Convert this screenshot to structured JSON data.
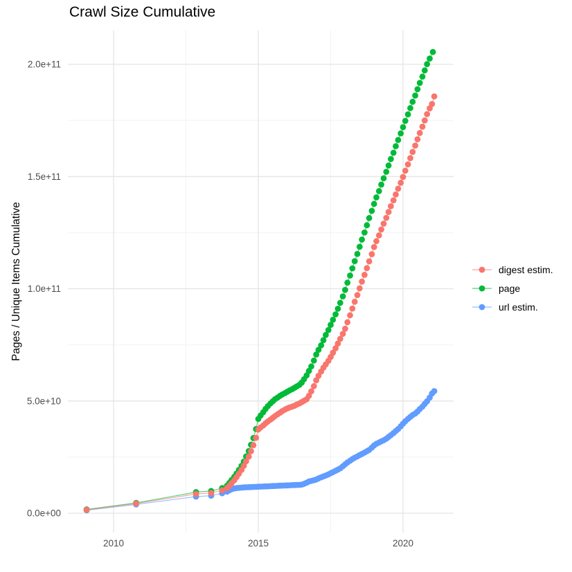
{
  "title": "Crawl Size Cumulative",
  "chart_data": {
    "type": "line",
    "title": "Crawl Size Cumulative",
    "xlabel": "",
    "ylabel": "Pages / Unique Items Cumulative",
    "x_unit": "year",
    "y_unit": "billions (1e9) of pages / unique items",
    "xlim": [
      2008.45,
      2021.75
    ],
    "ylim": [
      -10000000000,
      216000000000
    ],
    "grid": true,
    "legend_position": "right",
    "x_major_ticks": [
      2010,
      2015,
      2020
    ],
    "x_tick_labels": [
      "2010",
      "2015",
      "2020"
    ],
    "x_minor_ticks": [
      2012.5,
      2017.5
    ],
    "y_major_ticks": [
      0,
      50000000000,
      100000000000,
      150000000000,
      200000000000
    ],
    "y_tick_labels": [
      "0.0e+00",
      "5.0e+10",
      "1.0e+11",
      "1.5e+11",
      "2.0e+11"
    ],
    "y_minor_ticks": [
      25000000000,
      75000000000,
      125000000000,
      175000000000
    ],
    "series": [
      {
        "name": "digest estim.",
        "color": "#F8766D",
        "points": [
          [
            2009.07,
            1.5
          ],
          [
            2010.78,
            4.3
          ],
          [
            2012.85,
            8.6
          ],
          [
            2013.37,
            9.0
          ],
          [
            2013.75,
            10.2
          ],
          [
            2013.92,
            11.2
          ],
          [
            2014.0,
            12.2
          ],
          [
            2014.08,
            13.4
          ],
          [
            2014.17,
            14.7
          ],
          [
            2014.25,
            16.1
          ],
          [
            2014.33,
            17.6
          ],
          [
            2014.42,
            19.3
          ],
          [
            2014.5,
            21.1
          ],
          [
            2014.58,
            23.1
          ],
          [
            2014.67,
            25.2
          ],
          [
            2014.75,
            27.6
          ],
          [
            2014.83,
            30.3
          ],
          [
            2014.92,
            33.6
          ],
          [
            2015.0,
            37.3
          ],
          [
            2015.08,
            38.2
          ],
          [
            2015.17,
            39.1
          ],
          [
            2015.25,
            40.0
          ],
          [
            2015.33,
            40.9
          ],
          [
            2015.42,
            41.7
          ],
          [
            2015.5,
            42.5
          ],
          [
            2015.58,
            43.3
          ],
          [
            2015.67,
            44.1
          ],
          [
            2015.75,
            44.8
          ],
          [
            2015.83,
            45.5
          ],
          [
            2015.92,
            46.2
          ],
          [
            2016.0,
            46.7
          ],
          [
            2016.08,
            47.1
          ],
          [
            2016.17,
            47.5
          ],
          [
            2016.25,
            47.9
          ],
          [
            2016.33,
            48.4
          ],
          [
            2016.42,
            48.9
          ],
          [
            2016.5,
            49.5
          ],
          [
            2016.58,
            50.1
          ],
          [
            2016.67,
            50.8
          ],
          [
            2016.75,
            52.3
          ],
          [
            2016.83,
            54.3
          ],
          [
            2016.92,
            56.6
          ],
          [
            2017.0,
            59.2
          ],
          [
            2017.08,
            61.2
          ],
          [
            2017.17,
            63.1
          ],
          [
            2017.25,
            64.8
          ],
          [
            2017.33,
            66.3
          ],
          [
            2017.42,
            67.9
          ],
          [
            2017.5,
            69.6
          ],
          [
            2017.58,
            71.5
          ],
          [
            2017.67,
            73.5
          ],
          [
            2017.75,
            75.6
          ],
          [
            2017.83,
            77.7
          ],
          [
            2017.92,
            79.9
          ],
          [
            2018.0,
            82.2
          ],
          [
            2018.08,
            85.1
          ],
          [
            2018.17,
            88.2
          ],
          [
            2018.25,
            91.2
          ],
          [
            2018.33,
            94.2
          ],
          [
            2018.42,
            97.2
          ],
          [
            2018.5,
            100.2
          ],
          [
            2018.58,
            103.2
          ],
          [
            2018.67,
            106.2
          ],
          [
            2018.75,
            109.2
          ],
          [
            2018.83,
            112.2
          ],
          [
            2018.92,
            115.4
          ],
          [
            2019.0,
            118.6
          ],
          [
            2019.08,
            121.2
          ],
          [
            2019.17,
            123.8
          ],
          [
            2019.25,
            126.4
          ],
          [
            2019.33,
            129.0
          ],
          [
            2019.42,
            131.6
          ],
          [
            2019.5,
            134.2
          ],
          [
            2019.58,
            136.8
          ],
          [
            2019.67,
            139.4
          ],
          [
            2019.75,
            142.0
          ],
          [
            2019.83,
            144.6
          ],
          [
            2019.92,
            147.2
          ],
          [
            2020.0,
            149.8
          ],
          [
            2020.08,
            152.6
          ],
          [
            2020.17,
            155.4
          ],
          [
            2020.25,
            158.2
          ],
          [
            2020.33,
            161.0
          ],
          [
            2020.42,
            163.8
          ],
          [
            2020.5,
            166.6
          ],
          [
            2020.58,
            169.4
          ],
          [
            2020.67,
            172.2
          ],
          [
            2020.75,
            175.0
          ],
          [
            2020.83,
            177.8
          ],
          [
            2020.92,
            180.4
          ],
          [
            2021.0,
            182.3
          ],
          [
            2021.08,
            185.7
          ]
        ]
      },
      {
        "name": "page",
        "color": "#00BA38",
        "points": [
          [
            2009.07,
            1.7
          ],
          [
            2010.78,
            4.6
          ],
          [
            2012.85,
            9.4
          ],
          [
            2013.37,
            9.9
          ],
          [
            2013.75,
            11.2
          ],
          [
            2013.92,
            12.3
          ],
          [
            2014.0,
            13.5
          ],
          [
            2014.08,
            14.8
          ],
          [
            2014.17,
            16.2
          ],
          [
            2014.25,
            17.7
          ],
          [
            2014.33,
            19.3
          ],
          [
            2014.42,
            21.1
          ],
          [
            2014.5,
            23.0
          ],
          [
            2014.58,
            25.3
          ],
          [
            2014.67,
            27.7
          ],
          [
            2014.75,
            30.5
          ],
          [
            2014.83,
            33.5
          ],
          [
            2014.92,
            37.5
          ],
          [
            2015.0,
            42.0
          ],
          [
            2015.08,
            43.5
          ],
          [
            2015.17,
            45.0
          ],
          [
            2015.25,
            46.4
          ],
          [
            2015.33,
            47.7
          ],
          [
            2015.42,
            48.9
          ],
          [
            2015.5,
            49.9
          ],
          [
            2015.58,
            50.8
          ],
          [
            2015.67,
            51.6
          ],
          [
            2015.75,
            52.3
          ],
          [
            2015.83,
            52.9
          ],
          [
            2015.92,
            53.5
          ],
          [
            2016.0,
            54.1
          ],
          [
            2016.08,
            54.7
          ],
          [
            2016.17,
            55.3
          ],
          [
            2016.25,
            55.9
          ],
          [
            2016.33,
            56.5
          ],
          [
            2016.42,
            57.2
          ],
          [
            2016.5,
            58.2
          ],
          [
            2016.58,
            59.7
          ],
          [
            2016.67,
            61.4
          ],
          [
            2016.75,
            63.4
          ],
          [
            2016.83,
            65.4
          ],
          [
            2016.92,
            68.0
          ],
          [
            2017.0,
            70.7
          ],
          [
            2017.08,
            72.8
          ],
          [
            2017.17,
            74.8
          ],
          [
            2017.25,
            77.1
          ],
          [
            2017.33,
            79.4
          ],
          [
            2017.42,
            81.6
          ],
          [
            2017.5,
            83.9
          ],
          [
            2017.58,
            86.2
          ],
          [
            2017.67,
            88.6
          ],
          [
            2017.75,
            91.1
          ],
          [
            2017.83,
            93.7
          ],
          [
            2017.92,
            96.6
          ],
          [
            2018.0,
            99.5
          ],
          [
            2018.08,
            102.7
          ],
          [
            2018.17,
            105.9
          ],
          [
            2018.25,
            109.1
          ],
          [
            2018.33,
            112.3
          ],
          [
            2018.42,
            115.5
          ],
          [
            2018.5,
            118.7
          ],
          [
            2018.58,
            121.9
          ],
          [
            2018.67,
            125.1
          ],
          [
            2018.75,
            128.3
          ],
          [
            2018.83,
            131.5
          ],
          [
            2018.92,
            134.7
          ],
          [
            2019.0,
            137.8
          ],
          [
            2019.08,
            140.7
          ],
          [
            2019.17,
            143.5
          ],
          [
            2019.25,
            146.4
          ],
          [
            2019.33,
            149.2
          ],
          [
            2019.42,
            152.1
          ],
          [
            2019.5,
            154.9
          ],
          [
            2019.58,
            157.8
          ],
          [
            2019.67,
            160.6
          ],
          [
            2019.75,
            163.5
          ],
          [
            2019.83,
            166.3
          ],
          [
            2019.92,
            169.2
          ],
          [
            2020.0,
            172.0
          ],
          [
            2020.08,
            174.8
          ],
          [
            2020.17,
            177.7
          ],
          [
            2020.25,
            180.5
          ],
          [
            2020.33,
            183.3
          ],
          [
            2020.42,
            186.1
          ],
          [
            2020.5,
            188.9
          ],
          [
            2020.58,
            191.7
          ],
          [
            2020.67,
            194.5
          ],
          [
            2020.75,
            197.3
          ],
          [
            2020.83,
            200.1
          ],
          [
            2020.92,
            202.6
          ],
          [
            2021.03,
            205.5
          ]
        ]
      },
      {
        "name": "url estim.",
        "color": "#619CFF",
        "points": [
          [
            2009.07,
            1.3
          ],
          [
            2010.78,
            3.9
          ],
          [
            2012.85,
            7.4
          ],
          [
            2013.37,
            7.8
          ],
          [
            2013.75,
            8.9
          ],
          [
            2013.92,
            9.6
          ],
          [
            2014.0,
            10.2
          ],
          [
            2014.08,
            10.7
          ],
          [
            2014.17,
            11.0
          ],
          [
            2014.25,
            11.2
          ],
          [
            2014.33,
            11.3
          ],
          [
            2014.42,
            11.4
          ],
          [
            2014.5,
            11.5
          ],
          [
            2014.58,
            11.55
          ],
          [
            2014.67,
            11.6
          ],
          [
            2014.75,
            11.65
          ],
          [
            2014.83,
            11.7
          ],
          [
            2014.92,
            11.75
          ],
          [
            2015.0,
            11.8
          ],
          [
            2015.08,
            11.85
          ],
          [
            2015.17,
            11.9
          ],
          [
            2015.25,
            11.95
          ],
          [
            2015.33,
            12.0
          ],
          [
            2015.42,
            12.05
          ],
          [
            2015.5,
            12.1
          ],
          [
            2015.58,
            12.15
          ],
          [
            2015.67,
            12.2
          ],
          [
            2015.75,
            12.25
          ],
          [
            2015.83,
            12.3
          ],
          [
            2015.92,
            12.35
          ],
          [
            2016.0,
            12.4
          ],
          [
            2016.08,
            12.45
          ],
          [
            2016.17,
            12.5
          ],
          [
            2016.25,
            12.55
          ],
          [
            2016.33,
            12.6
          ],
          [
            2016.42,
            12.65
          ],
          [
            2016.5,
            12.75
          ],
          [
            2016.58,
            13.1
          ],
          [
            2016.67,
            13.6
          ],
          [
            2016.75,
            14.1
          ],
          [
            2016.83,
            14.4
          ],
          [
            2016.92,
            14.7
          ],
          [
            2017.0,
            15.0
          ],
          [
            2017.08,
            15.5
          ],
          [
            2017.17,
            16.0
          ],
          [
            2017.25,
            16.4
          ],
          [
            2017.33,
            16.8
          ],
          [
            2017.42,
            17.3
          ],
          [
            2017.5,
            17.8
          ],
          [
            2017.58,
            18.3
          ],
          [
            2017.67,
            18.9
          ],
          [
            2017.75,
            19.4
          ],
          [
            2017.83,
            20.0
          ],
          [
            2017.92,
            20.9
          ],
          [
            2018.0,
            21.8
          ],
          [
            2018.08,
            22.6
          ],
          [
            2018.17,
            23.4
          ],
          [
            2018.25,
            24.1
          ],
          [
            2018.33,
            24.7
          ],
          [
            2018.42,
            25.3
          ],
          [
            2018.5,
            25.9
          ],
          [
            2018.58,
            26.4
          ],
          [
            2018.67,
            27.0
          ],
          [
            2018.75,
            27.6
          ],
          [
            2018.83,
            28.2
          ],
          [
            2018.92,
            29.2
          ],
          [
            2019.0,
            30.2
          ],
          [
            2019.08,
            30.9
          ],
          [
            2019.17,
            31.5
          ],
          [
            2019.25,
            32.0
          ],
          [
            2019.33,
            32.5
          ],
          [
            2019.42,
            33.2
          ],
          [
            2019.5,
            34.0
          ],
          [
            2019.58,
            34.8
          ],
          [
            2019.67,
            35.7
          ],
          [
            2019.75,
            36.6
          ],
          [
            2019.83,
            37.5
          ],
          [
            2019.92,
            38.7
          ],
          [
            2020.0,
            39.9
          ],
          [
            2020.08,
            41.0
          ],
          [
            2020.17,
            42.0
          ],
          [
            2020.25,
            42.9
          ],
          [
            2020.33,
            43.7
          ],
          [
            2020.42,
            44.4
          ],
          [
            2020.5,
            45.3
          ],
          [
            2020.58,
            46.4
          ],
          [
            2020.67,
            47.5
          ],
          [
            2020.75,
            48.7
          ],
          [
            2020.83,
            49.9
          ],
          [
            2020.92,
            51.5
          ],
          [
            2021.0,
            53.3
          ],
          [
            2021.08,
            54.4
          ]
        ]
      }
    ]
  },
  "legend": {
    "items": [
      {
        "label": "digest estim.",
        "color": "#F8766D"
      },
      {
        "label": "page",
        "color": "#00BA38"
      },
      {
        "label": "url estim.",
        "color": "#619CFF"
      }
    ]
  }
}
